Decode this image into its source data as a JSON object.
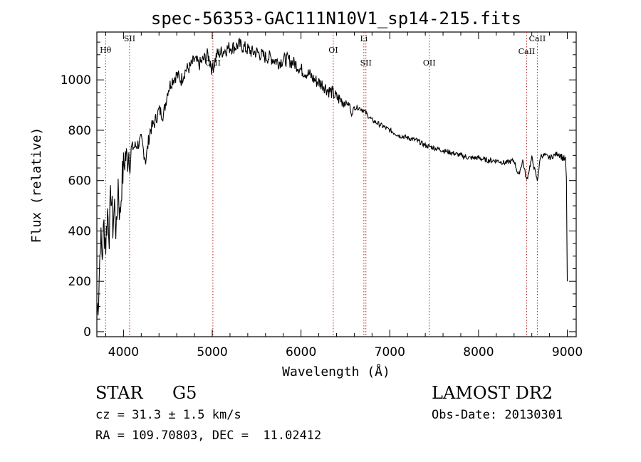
{
  "chart_data": {
    "type": "line",
    "title": "spec-56353-GAC111N10V1_sp14-215.fits",
    "xlabel": "Wavelength (Å)",
    "ylabel": "Flux (relative)",
    "xlim": [
      3700,
      9100
    ],
    "ylim": [
      -20,
      1190
    ],
    "xticks": [
      4000,
      5000,
      6000,
      7000,
      8000,
      9000
    ],
    "yticks": [
      0,
      200,
      400,
      600,
      800,
      1000
    ],
    "grid": false,
    "series": [
      {
        "x": [
          3700,
          3720,
          3740,
          3760,
          3780,
          3800,
          3820,
          3840,
          3860,
          3880,
          3900,
          3920,
          3940,
          3960,
          3980,
          4000,
          4020,
          4040,
          4060,
          4080,
          4100,
          4150,
          4200,
          4250,
          4300,
          4350,
          4400,
          4450,
          4500,
          4550,
          4600,
          4650,
          4700,
          4750,
          4800,
          4850,
          4900,
          4950,
          5000,
          5050,
          5100,
          5150,
          5200,
          5250,
          5300,
          5350,
          5400,
          5450,
          5500,
          5550,
          5600,
          5650,
          5700,
          5750,
          5800,
          5850,
          5900,
          5950,
          6000,
          6050,
          6100,
          6150,
          6200,
          6250,
          6300,
          6350,
          6400,
          6450,
          6500,
          6550,
          6563,
          6600,
          6650,
          6700,
          6750,
          6800,
          6850,
          6900,
          6950,
          7000,
          7050,
          7100,
          7200,
          7300,
          7400,
          7500,
          7600,
          7700,
          7800,
          7900,
          8000,
          8100,
          8200,
          8300,
          8400,
          8450,
          8498,
          8542,
          8600,
          8662,
          8700,
          8750,
          8800,
          8850,
          8900,
          8950,
          8980,
          8990,
          9000
        ],
        "y": [
          80,
          150,
          380,
          300,
          420,
          350,
          480,
          400,
          560,
          420,
          500,
          380,
          600,
          450,
          590,
          650,
          700,
          680,
          720,
          690,
          730,
          740,
          760,
          680,
          800,
          830,
          880,
          860,
          960,
          1000,
          1020,
          1000,
          1040,
          1050,
          1080,
          1060,
          1080,
          1100,
          1040,
          1100,
          1110,
          1120,
          1130,
          1130,
          1140,
          1130,
          1120,
          1110,
          1110,
          1100,
          1090,
          1090,
          1080,
          1070,
          1080,
          1080,
          1070,
          1060,
          1040,
          1030,
          1020,
          1000,
          990,
          980,
          960,
          950,
          930,
          920,
          910,
          900,
          860,
          890,
          890,
          880,
          860,
          840,
          830,
          820,
          810,
          800,
          790,
          780,
          770,
          760,
          740,
          730,
          720,
          710,
          700,
          690,
          690,
          680,
          680,
          670,
          680,
          620,
          680,
          600,
          690,
          600,
          700,
          700,
          690,
          700,
          710,
          690,
          680,
          600,
          200
        ]
      }
    ],
    "line_markers": [
      {
        "label": "Hθ",
        "x": 3798
      },
      {
        "label": "SII",
        "x": 4069
      },
      {
        "label": "OIII",
        "x": 5007
      },
      {
        "label": "OI",
        "x": 6363
      },
      {
        "label": "Li",
        "x": 6708
      },
      {
        "label": "SII",
        "x": 6731
      },
      {
        "label": "OII",
        "x": 7445
      },
      {
        "label": "CaII",
        "x": 8542
      },
      {
        "label": "CaII",
        "x": 8662
      }
    ]
  },
  "info": {
    "object_class": "STAR",
    "subclass": "G5",
    "cz": "cz = 31.3 ± 1.5 km/s",
    "coords": "RA = 109.70803, DEC =  11.02412",
    "survey": "LAMOST DR2",
    "obs_date": "Obs-Date: 20130301"
  },
  "colors": {
    "spectrum": "#000000",
    "marker_line": "#b22222",
    "axes": "#000000"
  }
}
